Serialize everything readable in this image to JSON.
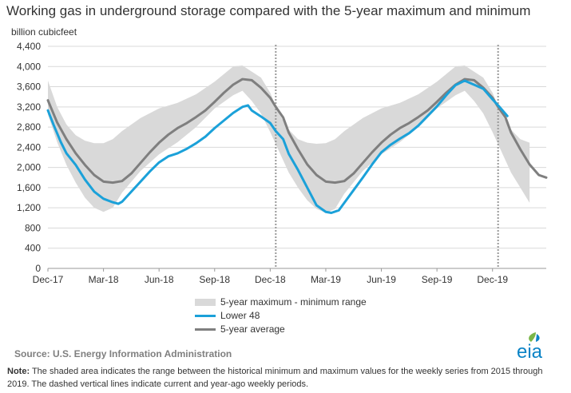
{
  "title": "Working gas in underground  storage compared with the 5-year maximum and minimum",
  "units": "billion cubicfeet",
  "source": "Source:  U.S. Energy Information Administration",
  "note_label": "Note:",
  "note_text": " The shaded area indicates the range between the historical minimum and maximum values for the weekly series from 2015 through 2019. The dashed vertical lines indicate current and year-ago weekly periods.",
  "logo_text": "eia",
  "colors": {
    "range": "#d9d9d9",
    "lower48": "#1ba1d9",
    "avg": "#7f7f7f",
    "grid": "#d9d9d9",
    "logo": "#0a83c6",
    "leaf": "#7ab648"
  },
  "chart_data": {
    "type": "line",
    "title": "Working gas in underground  storage compared with the 5-year maximum and minimum",
    "ylabel": "billion cubicfeet",
    "ylim": [
      0,
      4400
    ],
    "xlim": [
      0,
      26
    ],
    "yticks": [
      0,
      400,
      800,
      1200,
      1600,
      2000,
      2400,
      2800,
      3200,
      3600,
      4000,
      4400
    ],
    "yticklabels": [
      "0",
      "400",
      "800",
      "1,200",
      "1,600",
      "2,000",
      "2,400",
      "2,800",
      "3,200",
      "3,600",
      "4,000",
      "4,400"
    ],
    "xticks": [
      0,
      3,
      6,
      9,
      12,
      15,
      18,
      21,
      24
    ],
    "xticklabels": [
      "Dec-17",
      "Mar-18",
      "Jun-18",
      "Sep-18",
      "Dec-18",
      "Mar-19",
      "Jun-19",
      "Sep-19",
      "Dec-19"
    ],
    "x_unit": "months since Dec-17",
    "grid": true,
    "legend_position": "bottom-center",
    "vlines": [
      12.3,
      24.3
    ],
    "series": [
      {
        "name": "5-year maximum - minimum range",
        "kind": "range",
        "points": [
          [
            0,
            3720,
            3050
          ],
          [
            0.5,
            3200,
            2500
          ],
          [
            1,
            2850,
            2050
          ],
          [
            1.5,
            2640,
            1700
          ],
          [
            2,
            2530,
            1400
          ],
          [
            2.5,
            2480,
            1200
          ],
          [
            3,
            2480,
            1120
          ],
          [
            3.5,
            2560,
            1200
          ],
          [
            4,
            2720,
            1500
          ],
          [
            5,
            2980,
            1930
          ],
          [
            6,
            3170,
            2260
          ],
          [
            7,
            3280,
            2500
          ],
          [
            8,
            3450,
            2800
          ],
          [
            9,
            3700,
            3170
          ],
          [
            10,
            4000,
            3430
          ],
          [
            10.5,
            4020,
            3520
          ],
          [
            11,
            3900,
            3320
          ],
          [
            11.5,
            3780,
            3070
          ],
          [
            12,
            3480,
            2700
          ],
          [
            12.5,
            3050,
            2300
          ],
          [
            13,
            2750,
            1900
          ],
          [
            13.5,
            2560,
            1600
          ],
          [
            14,
            2490,
            1350
          ],
          [
            14.5,
            2470,
            1180
          ],
          [
            15,
            2480,
            1100
          ],
          [
            15.5,
            2560,
            1180
          ],
          [
            16,
            2720,
            1480
          ],
          [
            17,
            2980,
            1930
          ],
          [
            18,
            3170,
            2260
          ],
          [
            19,
            3280,
            2500
          ],
          [
            20,
            3450,
            2800
          ],
          [
            21,
            3700,
            3170
          ],
          [
            22,
            4000,
            3430
          ],
          [
            22.5,
            4020,
            3520
          ],
          [
            23,
            3900,
            3320
          ],
          [
            23.5,
            3780,
            3070
          ],
          [
            24,
            3480,
            2700
          ],
          [
            24.5,
            3050,
            2300
          ],
          [
            25,
            2750,
            1900
          ],
          [
            25.5,
            2560,
            1600
          ],
          [
            26,
            2490,
            1300
          ]
        ]
      },
      {
        "name": "Lower 48",
        "kind": "line",
        "points": [
          [
            0,
            3130
          ],
          [
            0.3,
            2850
          ],
          [
            0.7,
            2500
          ],
          [
            1,
            2280
          ],
          [
            1.5,
            2050
          ],
          [
            2,
            1760
          ],
          [
            2.5,
            1520
          ],
          [
            3,
            1380
          ],
          [
            3.5,
            1310
          ],
          [
            3.8,
            1280
          ],
          [
            4,
            1320
          ],
          [
            4.5,
            1520
          ],
          [
            5,
            1720
          ],
          [
            5.5,
            1920
          ],
          [
            6,
            2100
          ],
          [
            6.5,
            2220
          ],
          [
            7,
            2280
          ],
          [
            7.5,
            2370
          ],
          [
            8,
            2480
          ],
          [
            8.5,
            2610
          ],
          [
            9,
            2780
          ],
          [
            9.5,
            2930
          ],
          [
            10,
            3080
          ],
          [
            10.5,
            3200
          ],
          [
            10.8,
            3230
          ],
          [
            11,
            3130
          ],
          [
            11.5,
            3010
          ],
          [
            12,
            2880
          ],
          [
            12.3,
            2720
          ],
          [
            12.7,
            2560
          ],
          [
            13,
            2270
          ],
          [
            13.5,
            1950
          ],
          [
            14,
            1600
          ],
          [
            14.5,
            1250
          ],
          [
            15,
            1120
          ],
          [
            15.3,
            1100
          ],
          [
            15.7,
            1150
          ],
          [
            16,
            1300
          ],
          [
            16.5,
            1550
          ],
          [
            17,
            1800
          ],
          [
            17.5,
            2060
          ],
          [
            18,
            2300
          ],
          [
            18.5,
            2450
          ],
          [
            19,
            2570
          ],
          [
            19.5,
            2680
          ],
          [
            20,
            2830
          ],
          [
            20.5,
            3020
          ],
          [
            21,
            3210
          ],
          [
            21.5,
            3430
          ],
          [
            22,
            3630
          ],
          [
            22.5,
            3720
          ],
          [
            23,
            3640
          ],
          [
            23.5,
            3560
          ],
          [
            24,
            3350
          ],
          [
            24.4,
            3190
          ],
          [
            24.8,
            3020
          ]
        ]
      },
      {
        "name": "5-year average",
        "kind": "line",
        "points": [
          [
            0,
            3330
          ],
          [
            0.5,
            2890
          ],
          [
            1,
            2560
          ],
          [
            1.5,
            2280
          ],
          [
            2,
            2050
          ],
          [
            2.5,
            1850
          ],
          [
            3,
            1720
          ],
          [
            3.5,
            1700
          ],
          [
            4,
            1730
          ],
          [
            4.5,
            1880
          ],
          [
            5,
            2090
          ],
          [
            5.5,
            2300
          ],
          [
            6,
            2490
          ],
          [
            6.5,
            2650
          ],
          [
            7,
            2780
          ],
          [
            7.5,
            2880
          ],
          [
            8,
            3000
          ],
          [
            8.5,
            3130
          ],
          [
            9,
            3300
          ],
          [
            9.5,
            3480
          ],
          [
            10,
            3640
          ],
          [
            10.5,
            3750
          ],
          [
            11,
            3730
          ],
          [
            11.5,
            3580
          ],
          [
            12,
            3380
          ],
          [
            12.3,
            3200
          ],
          [
            12.7,
            2990
          ],
          [
            13,
            2690
          ],
          [
            13.5,
            2360
          ],
          [
            14,
            2060
          ],
          [
            14.5,
            1850
          ],
          [
            15,
            1720
          ],
          [
            15.5,
            1700
          ],
          [
            16,
            1730
          ],
          [
            16.5,
            1880
          ],
          [
            17,
            2090
          ],
          [
            17.5,
            2300
          ],
          [
            18,
            2490
          ],
          [
            18.5,
            2650
          ],
          [
            19,
            2780
          ],
          [
            19.5,
            2880
          ],
          [
            20,
            3000
          ],
          [
            20.5,
            3130
          ],
          [
            21,
            3300
          ],
          [
            21.5,
            3480
          ],
          [
            22,
            3640
          ],
          [
            22.5,
            3750
          ],
          [
            23,
            3730
          ],
          [
            23.5,
            3580
          ],
          [
            24,
            3380
          ],
          [
            24.3,
            3200
          ],
          [
            24.7,
            2990
          ],
          [
            25,
            2690
          ],
          [
            25.5,
            2360
          ],
          [
            26,
            2060
          ],
          [
            26.5,
            1850
          ],
          [
            26.9,
            1800
          ]
        ]
      }
    ]
  },
  "legend": [
    {
      "label": "5-year maximum - minimum range"
    },
    {
      "label": "Lower 48"
    },
    {
      "label": "5-year average"
    }
  ]
}
